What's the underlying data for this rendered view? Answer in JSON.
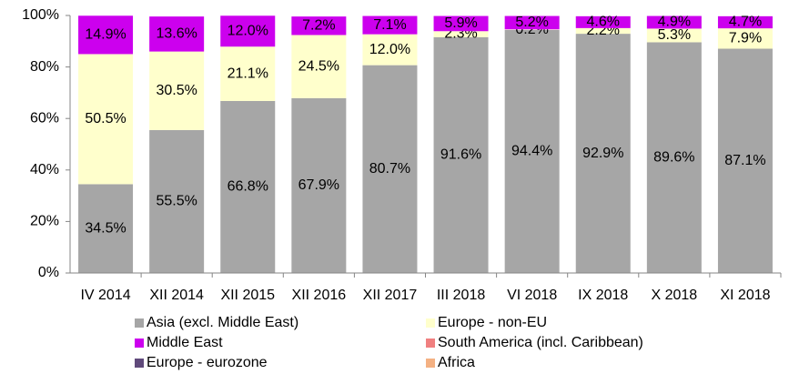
{
  "chart_data": {
    "type": "stacked_bar",
    "categories": [
      "IV 2014",
      "XII 2014",
      "XII 2015",
      "XII 2016",
      "XII 2017",
      "III 2018",
      "VI 2018",
      "IX 2018",
      "X 2018",
      "XI 2018"
    ],
    "series": [
      {
        "name": "Asia (excl. Middle East)",
        "color": "#a6a6a6",
        "values": [
          34.5,
          55.5,
          66.8,
          67.9,
          80.7,
          91.6,
          94.4,
          92.9,
          89.6,
          87.1
        ],
        "value_labels": [
          "34.5%",
          "55.5%",
          "66.8%",
          "67.9%",
          "80.7%",
          "91.6%",
          "94.4%",
          "92.9%",
          "89.6%",
          "87.1%"
        ]
      },
      {
        "name": "Europe - non-EU",
        "color": "#ffffcc",
        "values": [
          50.5,
          30.5,
          21.1,
          24.5,
          12.0,
          2.3,
          0.2,
          2.2,
          5.3,
          7.9
        ],
        "value_labels": [
          "50.5%",
          "30.5%",
          "21.1%",
          "24.5%",
          "12.0%",
          "2.3%",
          "0.2%",
          "2.2%",
          "5.3%",
          "7.9%"
        ]
      },
      {
        "name": "Middle East",
        "color": "#cc00ee",
        "values": [
          14.9,
          13.6,
          12.0,
          7.2,
          7.1,
          5.9,
          5.2,
          4.6,
          4.9,
          4.7
        ],
        "value_labels": [
          "14.9%",
          "13.6%",
          "12.0%",
          "7.2%",
          "7.1%",
          "5.9%",
          "5.2%",
          "4.6%",
          "4.9%",
          "4.7%"
        ]
      },
      {
        "name": "South America (incl. Caribbean)",
        "color": "#f08080",
        "values": [
          0,
          0,
          0,
          0,
          0,
          0,
          0,
          0,
          0,
          0
        ]
      },
      {
        "name": "Europe - eurozone",
        "color": "#604a7b",
        "values": [
          0,
          0,
          0,
          0,
          0,
          0,
          0,
          0,
          0,
          0
        ]
      },
      {
        "name": "Africa",
        "color": "#f4b183",
        "values": [
          0,
          0,
          0,
          0,
          0,
          0,
          0,
          0,
          0,
          0
        ]
      }
    ],
    "ylim": [
      0,
      100
    ],
    "yticks": [
      {
        "value": 0,
        "label": "0%"
      },
      {
        "value": 20,
        "label": "20%"
      },
      {
        "value": 40,
        "label": "40%"
      },
      {
        "value": 60,
        "label": "60%"
      },
      {
        "value": 80,
        "label": "80%"
      },
      {
        "value": 100,
        "label": "100%"
      }
    ]
  }
}
